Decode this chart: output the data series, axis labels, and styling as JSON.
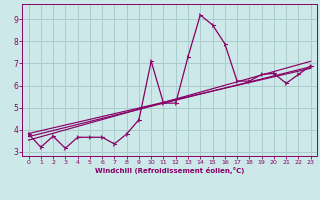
{
  "xlabel": "Windchill (Refroidissement éolien,°C)",
  "bg_color": "#cce8e8",
  "grid_color": "#aacccc",
  "line_color": "#880066",
  "xlim": [
    -0.5,
    23.5
  ],
  "ylim": [
    2.8,
    9.7
  ],
  "yticks": [
    3,
    4,
    5,
    6,
    7,
    8,
    9
  ],
  "xticks": [
    0,
    1,
    2,
    3,
    4,
    5,
    6,
    7,
    8,
    9,
    10,
    11,
    12,
    13,
    14,
    15,
    16,
    17,
    18,
    19,
    20,
    21,
    22,
    23
  ],
  "y_data": [
    3.8,
    3.2,
    3.7,
    3.15,
    3.65,
    3.65,
    3.65,
    3.35,
    3.8,
    4.45,
    7.1,
    5.2,
    5.2,
    7.3,
    9.2,
    8.75,
    7.9,
    6.2,
    6.2,
    6.5,
    6.55,
    6.1,
    6.5,
    6.9
  ],
  "reg_lines": [
    {
      "x0": 0,
      "y0": 3.68,
      "x1": 23,
      "y1": 6.85
    },
    {
      "x0": 0,
      "y0": 3.52,
      "x1": 23,
      "y1": 7.1
    },
    {
      "x0": 0,
      "y0": 3.82,
      "x1": 23,
      "y1": 6.78
    }
  ]
}
